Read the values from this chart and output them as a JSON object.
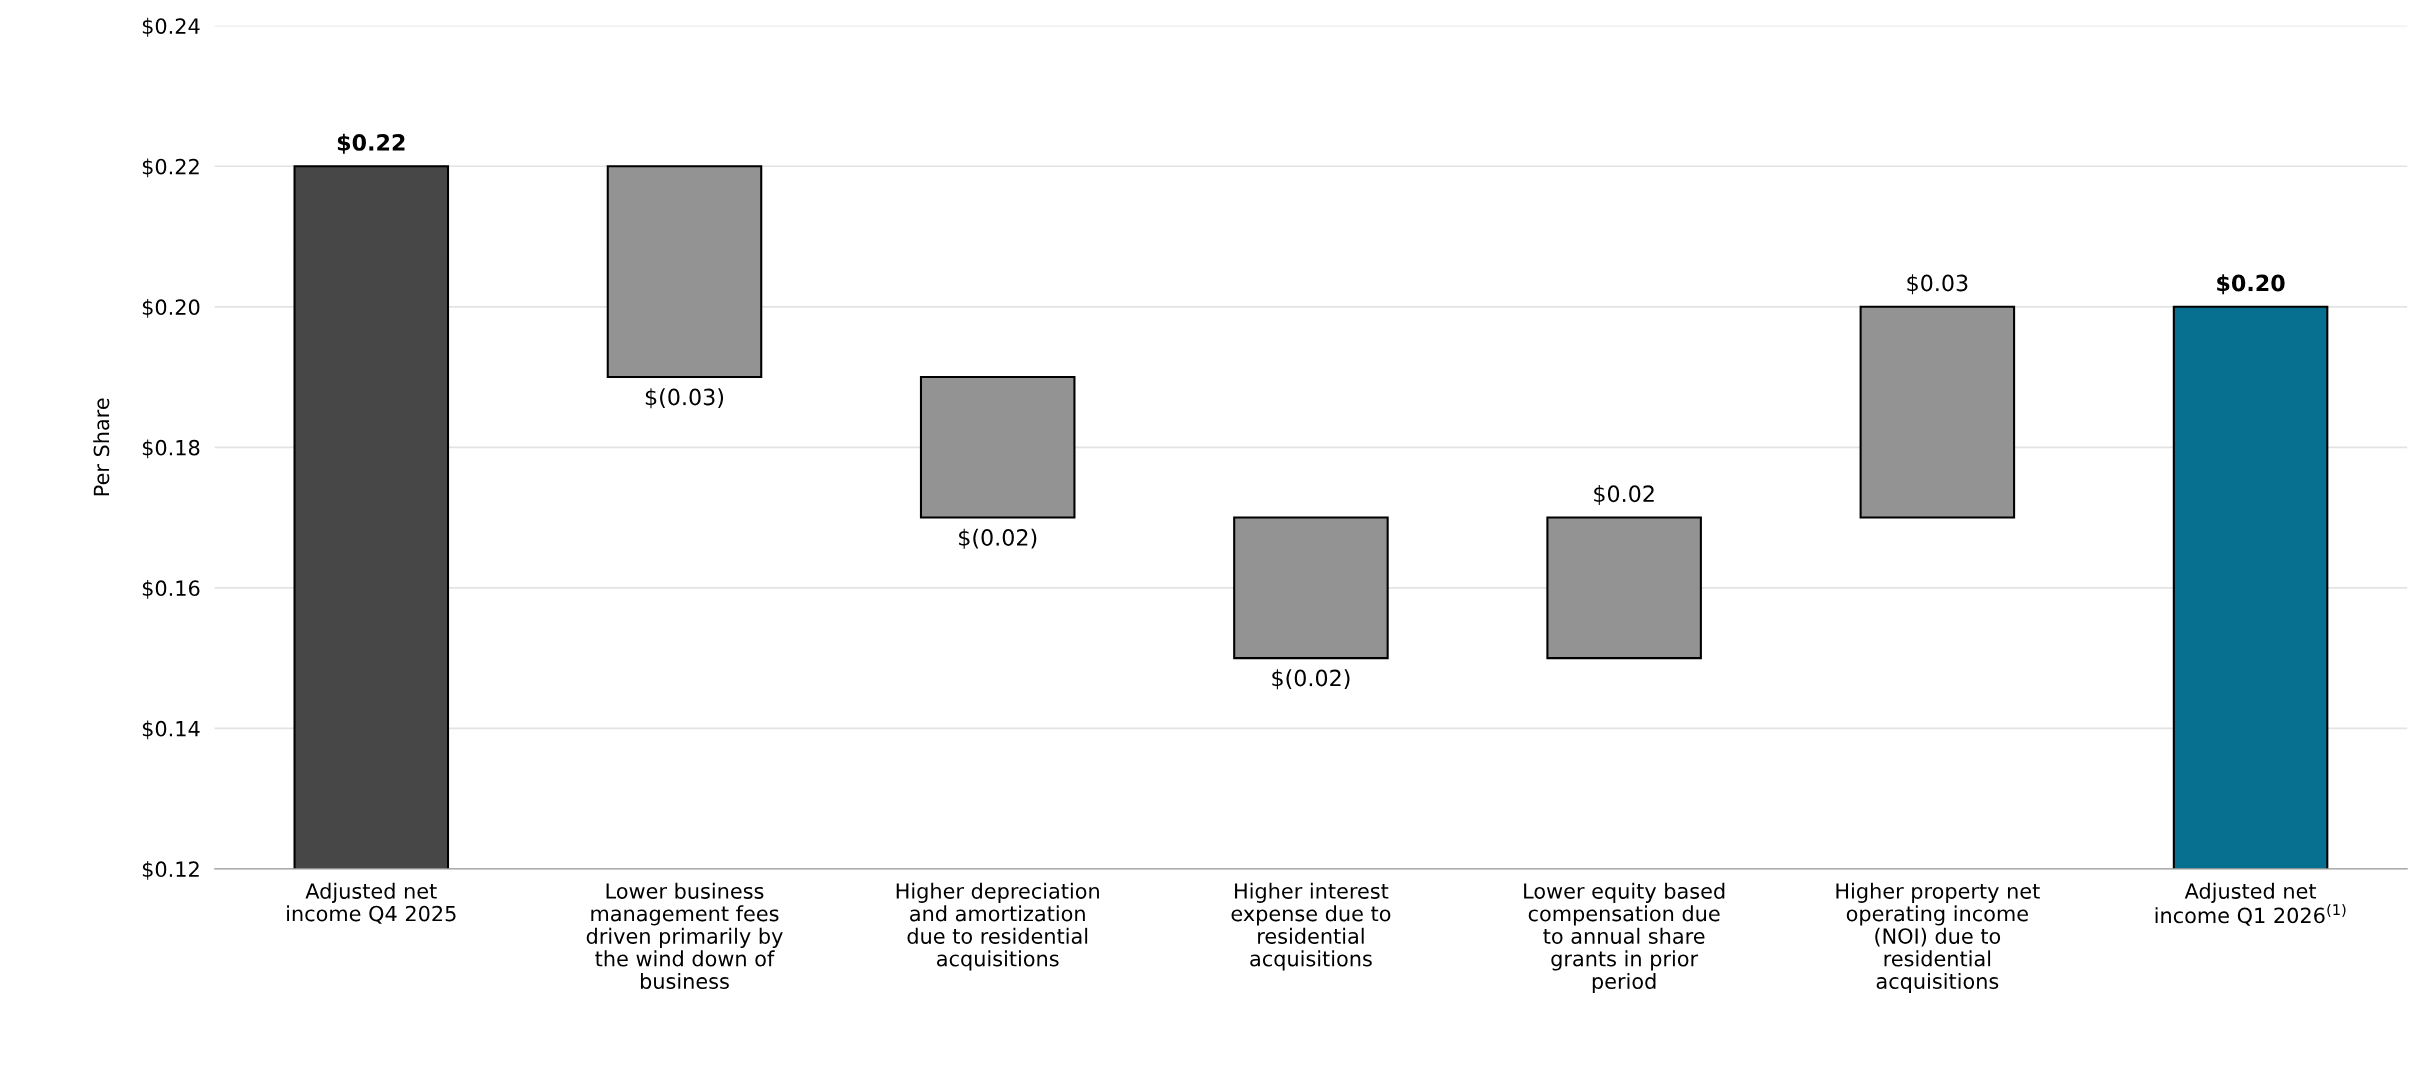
{
  "chart_data": {
    "type": "bar",
    "ylabel": "Per Share",
    "categories": [
      "Adjusted net\nincome Q4 2025",
      "Lower business\nmanagement fees\ndriven primarily by\nthe wind down of\nbusiness",
      "Higher depreciation\nand amortization\ndue to residential\nacquisitions",
      "Higher interest\nexpense due to\nresidential\nacquisitions",
      "Lower equity based\ncompensation due\nto annual share\ngrants in prior\nperiod",
      "Higher property net\noperating income\n(NOI) due to\nresidential\nacquisitions",
      "Adjusted net\nincome Q1 2026$^{(1)}$"
    ],
    "values": [
      0.22,
      -0.03,
      -0.02,
      -0.02,
      0.02,
      0.03,
      0.2
    ],
    "base": [
      0,
      0.22,
      0.19,
      0.17,
      0.15,
      0.17,
      0
    ],
    "colors": [
      "#474747",
      "#939393",
      "#939393",
      "#939393",
      "#939393",
      "#939393",
      "#076f8f"
    ],
    "value_labels": [
      "$0.22",
      "$(0.03)",
      "$(0.02)",
      "$(0.02)",
      "$0.02",
      "$0.03",
      "$0.20"
    ],
    "ylim": [
      0.12,
      0.24
    ],
    "yticks": [
      {
        "value": 0.12,
        "label": "$0.12"
      },
      {
        "value": 0.14,
        "label": "$0.14"
      },
      {
        "value": 0.16,
        "label": "$0.16"
      },
      {
        "value": 0.18,
        "label": "$0.18"
      },
      {
        "value": 0.2,
        "label": "$0.20"
      },
      {
        "value": 0.22,
        "label": "$0.22"
      },
      {
        "value": 0.24,
        "label": "$0.24"
      }
    ],
    "grid": "y"
  }
}
